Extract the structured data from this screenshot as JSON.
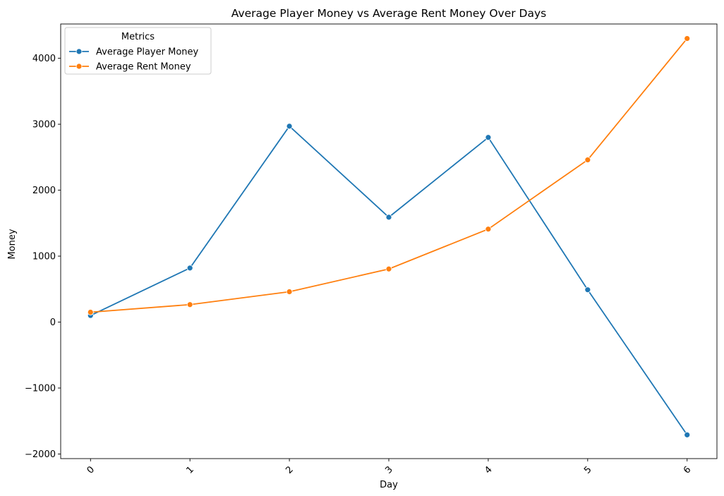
{
  "chart_data": {
    "type": "line",
    "title": "Average Player Money vs Average Rent Money Over Days",
    "xlabel": "Day",
    "ylabel": "Money",
    "x": [
      0,
      1,
      2,
      3,
      4,
      5,
      6
    ],
    "x_tick_labels": [
      "0",
      "1",
      "2",
      "3",
      "4",
      "5",
      "6"
    ],
    "y_ticks": [
      -2000,
      -1000,
      0,
      1000,
      2000,
      3000,
      4000
    ],
    "y_tick_labels": [
      "−2000",
      "−1000",
      "0",
      "1000",
      "2000",
      "3000",
      "4000"
    ],
    "ylim": [
      -2070,
      4520
    ],
    "xlim": [
      -0.3,
      6.3
    ],
    "grid": false,
    "legend": {
      "title": "Metrics",
      "placement": "top-left"
    },
    "series": [
      {
        "name": "Average Player Money",
        "color": "#1f77b4",
        "values": [
          100,
          820,
          2970,
          1590,
          2800,
          490,
          -1710
        ]
      },
      {
        "name": "Average Rent Money",
        "color": "#ff7f0e",
        "values": [
          150,
          265,
          460,
          805,
          1410,
          2460,
          4300
        ]
      }
    ]
  }
}
